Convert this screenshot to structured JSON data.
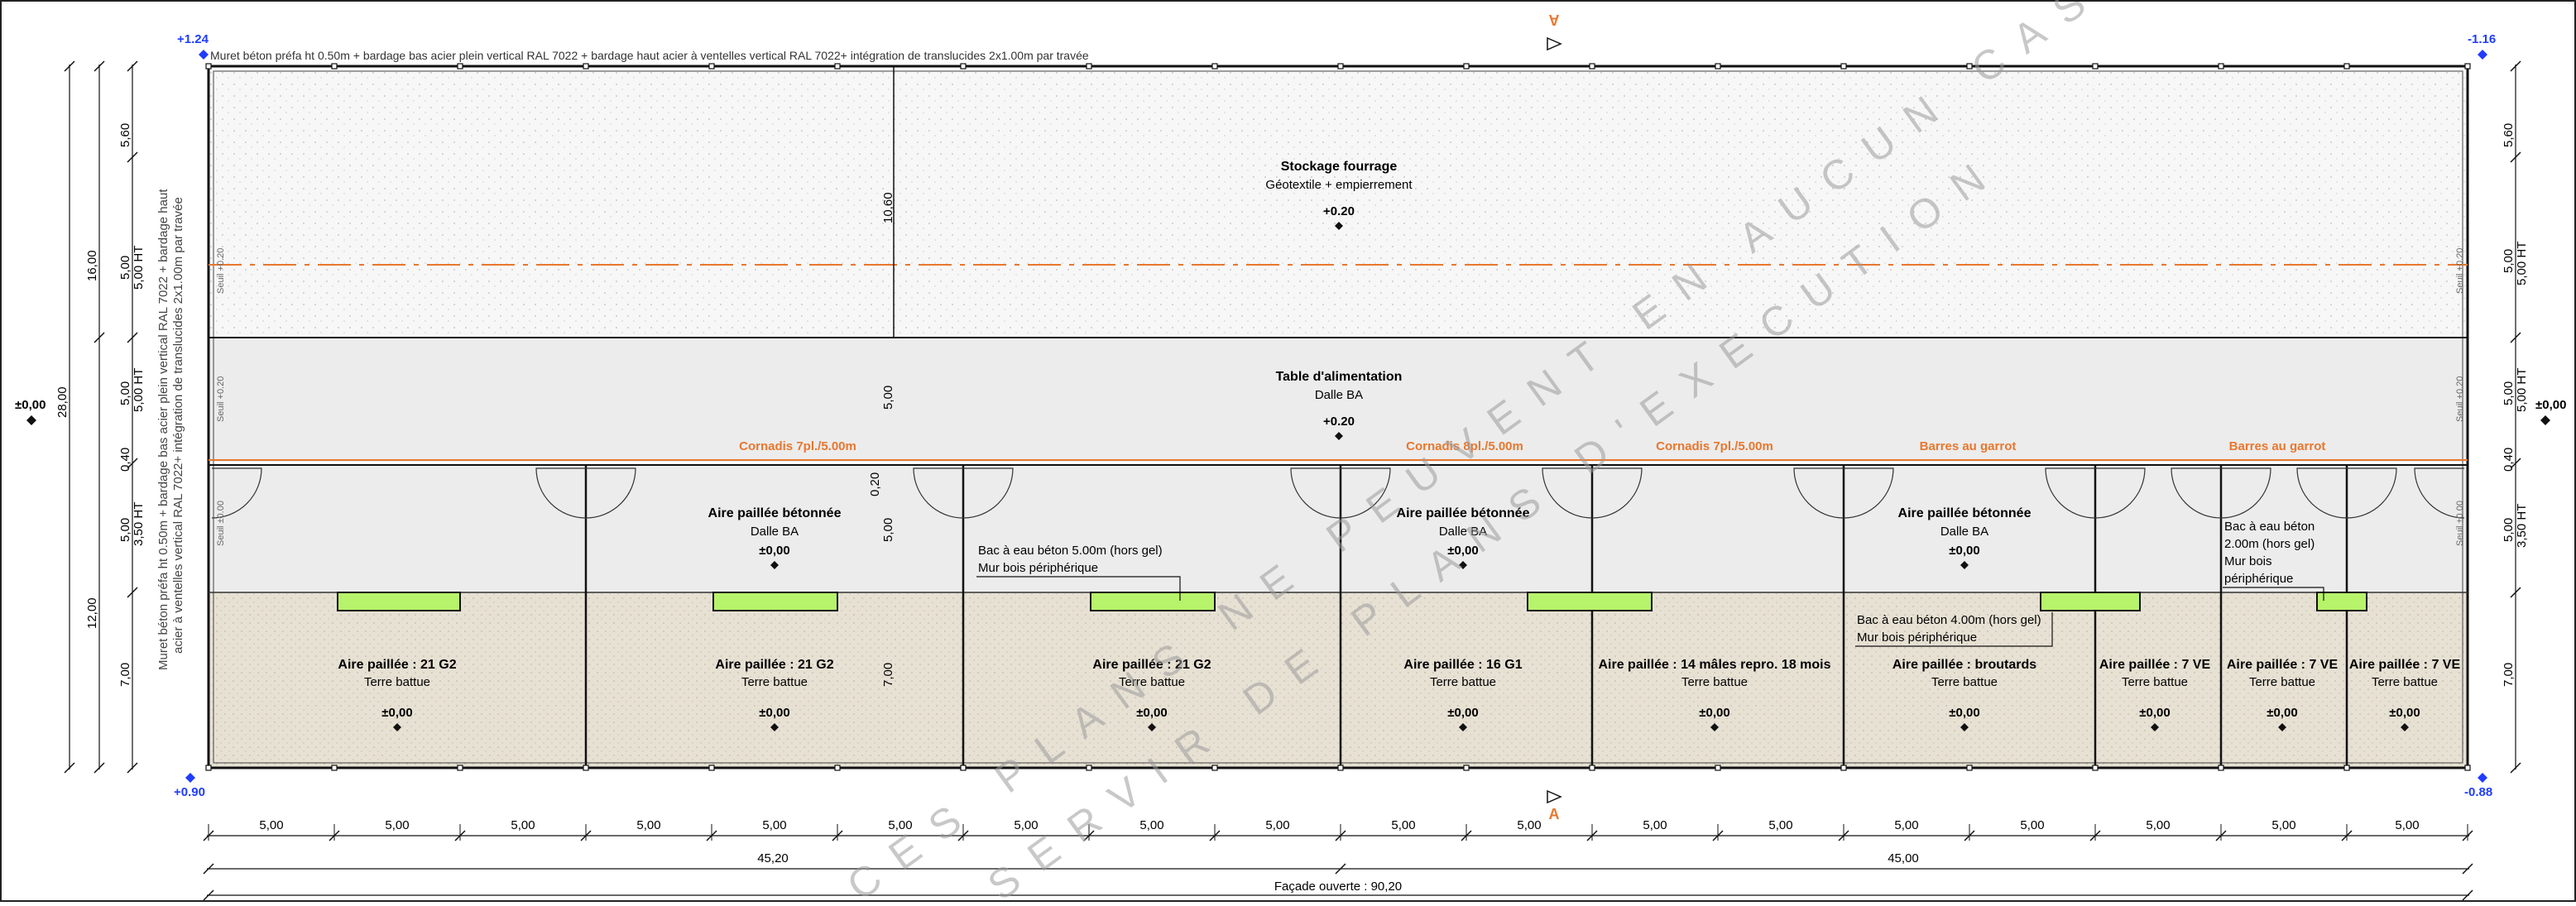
{
  "levels": {
    "top_left": "+1.24",
    "top_right": "-1.16",
    "bottom_left": "+0.90",
    "bottom_right": "-0.88",
    "left_mid": "±0,00",
    "right_mid": "±0,00"
  },
  "top_note": "Muret béton préfa ht 0.50m + bardage bas acier plein vertical RAL 7022 + bardage haut acier à ventelles vertical RAL 7022+ intégration de translucides 2x1.00m par travée",
  "left_note_1": "Muret béton préfa ht 0.50m + bardage bas acier plein vertical RAL 7022 + bardage haut",
  "left_note_2": "acier à ventelles vertical RAL 7022+ intégration de translucides 2x1.00m par travée",
  "section_mark": "A",
  "zones": {
    "storage": {
      "title": "Stockage fourrage",
      "sub": "Géotextile + empierrement",
      "level": "+0.20"
    },
    "feeding": {
      "title": "Table d'alimentation",
      "sub": "Dalle BA",
      "level": "+0.20"
    }
  },
  "cornadis": [
    "Cornadis 7pl./5.00m",
    "Cornadis 8pl./5.00m",
    "Cornadis 7pl./5.00m",
    "Barres au garrot",
    "Barres au garrot"
  ],
  "concrete_areas": [
    {
      "title": "Aire paillée bétonnée",
      "sub": "Dalle BA",
      "level": "±0,00"
    },
    {
      "title": "Aire paillée bétonnée",
      "sub": "Dalle BA",
      "level": "±0,00"
    },
    {
      "title": "Aire paillée bétonnée",
      "sub": "Dalle BA",
      "level": "±0,00"
    }
  ],
  "bac_notes": {
    "n1": [
      "Bac à eau béton 5.00m (hors gel)",
      "Mur bois périphérique"
    ],
    "n2": [
      "Bac à eau béton 4.00m (hors gel)",
      "Mur bois périphérique"
    ],
    "n3": [
      "Bac à eau béton",
      "2.00m (hors gel)",
      "Mur bois",
      "périphérique"
    ]
  },
  "pens": [
    {
      "title": "Aire paillée : 21 G2",
      "sub": "Terre battue",
      "level": "±0,00"
    },
    {
      "title": "Aire paillée : 21 G2",
      "sub": "Terre battue",
      "level": "±0,00"
    },
    {
      "title": "Aire paillée : 21 G2",
      "sub": "Terre battue",
      "level": "±0,00"
    },
    {
      "title": "Aire paillée : 16 G1",
      "sub": "Terre battue",
      "level": "±0,00"
    },
    {
      "title": "Aire paillée : 14 mâles repro. 18 mois",
      "sub": "Terre battue",
      "level": "±0,00"
    },
    {
      "title": "Aire paillée : broutards",
      "sub": "Terre battue",
      "level": "±0,00"
    },
    {
      "title": "Aire paillée : 7 VE",
      "sub": "Terre battue",
      "level": "±0,00"
    },
    {
      "title": "Aire paillée : 7 VE",
      "sub": "Terre battue",
      "level": "±0,00"
    },
    {
      "title": "Aire paillée : 7 VE",
      "sub": "Terre battue",
      "level": "±0,00"
    }
  ],
  "dims": {
    "bay": "5,00",
    "left_total": "45,20",
    "right_total": "45,00",
    "facade": "Façade ouverte : 90,20",
    "left_outer": "28,00",
    "left_mid1": "16,00",
    "left_mid2": "12,00",
    "left_a": "5,60",
    "left_b": "5,00 HT",
    "left_b2": "5,00",
    "left_c": "5,00",
    "left_c2": "5,00 HT",
    "left_d": "0,40",
    "left_e": "5,00",
    "left_e2": "3,50 HT",
    "left_f": "7,00",
    "inner_1060": "10,60",
    "inner_500": "5,00",
    "inner_020": "0,20",
    "inner_500b": "5,00",
    "inner_700": "7,00",
    "right_a": "5,60",
    "right_b": "5,00",
    "right_b2": "5,00 HT",
    "right_c": "5,00",
    "right_c2": "5,00 HT",
    "right_d": "0,40",
    "right_e": "5,00",
    "right_e2": "3,50 HT",
    "right_f": "7,00"
  },
  "seuils": [
    "Seuil +0.20",
    "Seuil +0.20",
    "Seuil ±0.00",
    "Seuil +0.20",
    "Seuil +0.20",
    "Seuil ±0.00"
  ],
  "watermark": [
    "CES PLANS NE PEUVENT EN AUCUN CAS",
    "SERVIR DE PLANS D'EXECUTION"
  ],
  "colors": {
    "orange": "#e8772e",
    "green": "#b7f36b",
    "blue": "#1f3cff",
    "straw": "#e7e1d4",
    "concrete": "#ececec",
    "storage": "#f7f7f7"
  }
}
